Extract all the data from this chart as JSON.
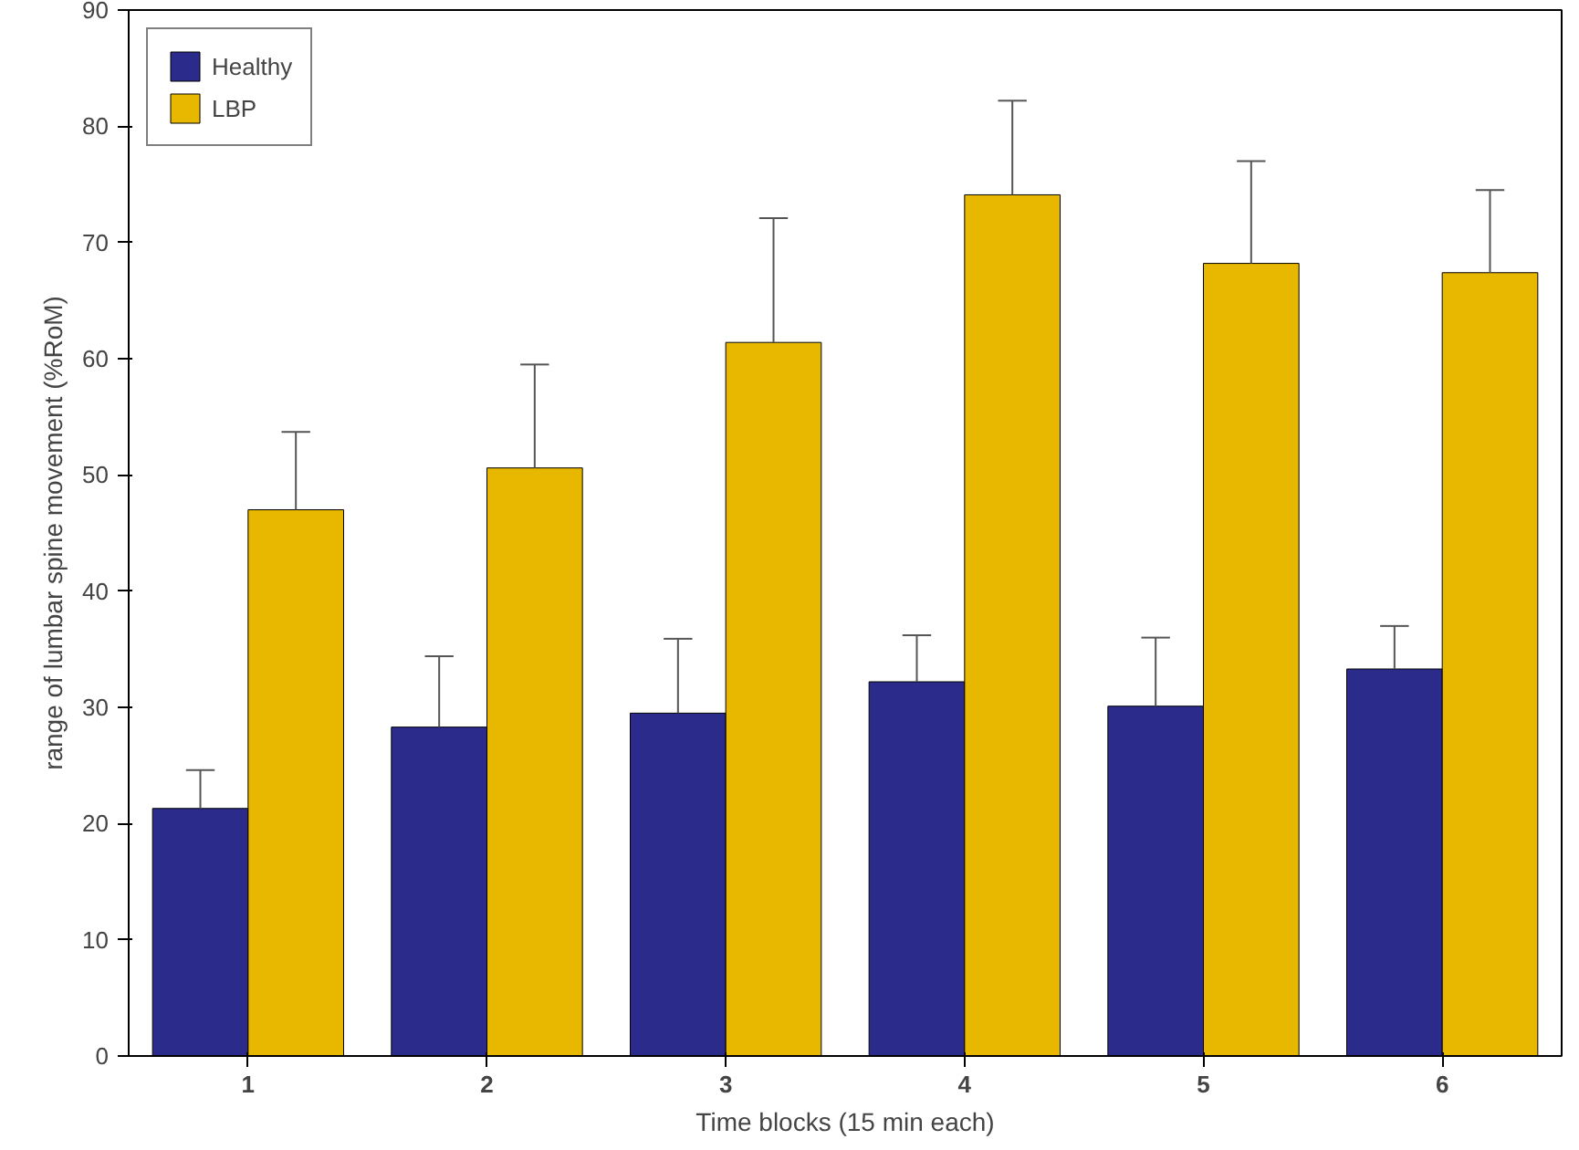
{
  "chart_data": {
    "type": "bar",
    "xlabel": "Time blocks (15 min each)",
    "ylabel": "range of lumbar spine movement (%RoM)",
    "categories": [
      "1",
      "2",
      "3",
      "4",
      "5",
      "6"
    ],
    "series": [
      {
        "name": "Healthy",
        "color": "#2b2b8c",
        "values": [
          21.3,
          28.3,
          29.5,
          32.2,
          30.1,
          33.3
        ],
        "errors": [
          [
            21.3,
            24.6
          ],
          [
            28.3,
            34.4
          ],
          [
            29.5,
            35.9
          ],
          [
            32.2,
            36.2
          ],
          [
            30.1,
            36.0
          ],
          [
            33.3,
            37.0
          ]
        ]
      },
      {
        "name": "LBP",
        "color": "#e8b800",
        "values": [
          47.0,
          50.6,
          61.4,
          74.1,
          68.2,
          67.4
        ],
        "errors": [
          [
            47.0,
            53.7
          ],
          [
            50.6,
            59.5
          ],
          [
            61.4,
            72.1
          ],
          [
            74.1,
            82.2
          ],
          [
            68.2,
            77.0
          ],
          [
            67.4,
            74.5
          ]
        ]
      }
    ],
    "ylim": [
      0,
      90
    ],
    "yticks": [
      0,
      10,
      20,
      30,
      40,
      50,
      60,
      70,
      80,
      90
    ],
    "grid": false,
    "legend": "top left"
  }
}
